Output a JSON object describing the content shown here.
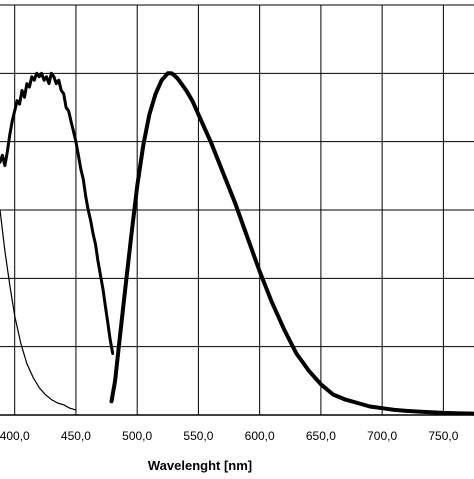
{
  "chart_data": {
    "type": "line",
    "title": "",
    "xlabel": "Wavelenght [nm]",
    "ylabel": "",
    "xlim": [
      388,
      775
    ],
    "ylim": [
      0,
      1.2
    ],
    "grid": true,
    "legend": "none",
    "x_ticks": [
      {
        "value": 400,
        "label": "400,0"
      },
      {
        "value": 450,
        "label": "450,0"
      },
      {
        "value": 500,
        "label": "500,0"
      },
      {
        "value": 550,
        "label": "550,0"
      },
      {
        "value": 600,
        "label": "600,0"
      },
      {
        "value": 650,
        "label": "650,0"
      },
      {
        "value": 700,
        "label": "700,0"
      },
      {
        "value": 750,
        "label": "750,0"
      }
    ],
    "y_gridlines": [
      0,
      0.2,
      0.4,
      0.6,
      0.8,
      1.0,
      1.2
    ],
    "series": [
      {
        "color": "#000000",
        "line_width": 3,
        "x": [
          388,
          390,
          392,
          394,
          396,
          398,
          400,
          402,
          404,
          406,
          408,
          410,
          412,
          414,
          416,
          418,
          420,
          422,
          424,
          426,
          428,
          430,
          432,
          434,
          436,
          438,
          440,
          442,
          444,
          446,
          448,
          450,
          452,
          454,
          456,
          458,
          460,
          462,
          464,
          466,
          468,
          470,
          472,
          474,
          476,
          478,
          480
        ],
        "y": [
          0.74,
          0.76,
          0.73,
          0.77,
          0.82,
          0.86,
          0.89,
          0.92,
          0.91,
          0.95,
          0.93,
          0.97,
          0.96,
          0.99,
          0.98,
          1.0,
          0.99,
          1.0,
          0.98,
          0.99,
          0.97,
          1.0,
          0.99,
          0.97,
          0.98,
          0.95,
          0.94,
          0.9,
          0.89,
          0.86,
          0.83,
          0.8,
          0.76,
          0.72,
          0.69,
          0.64,
          0.6,
          0.57,
          0.53,
          0.5,
          0.45,
          0.41,
          0.37,
          0.32,
          0.27,
          0.22,
          0.18
        ]
      },
      {
        "color": "#000000",
        "line_width": 1.2,
        "x": [
          388,
          392,
          396,
          400,
          405,
          410,
          415,
          420,
          425,
          430,
          435,
          440,
          445,
          450
        ],
        "y": [
          0.6,
          0.48,
          0.38,
          0.29,
          0.21,
          0.15,
          0.11,
          0.08,
          0.06,
          0.045,
          0.035,
          0.03,
          0.02,
          0.015
        ]
      },
      {
        "color": "#000000",
        "line_width": 4,
        "x": [
          479,
          482,
          485,
          490,
          495,
          500,
          505,
          510,
          515,
          520,
          525,
          528,
          530,
          533,
          536,
          540,
          545,
          550,
          555,
          560,
          570,
          580,
          590,
          600,
          610,
          620,
          630,
          640,
          650,
          660,
          670,
          680,
          690,
          700,
          710,
          720,
          730,
          740,
          750,
          760,
          775
        ],
        "y": [
          0.04,
          0.1,
          0.2,
          0.36,
          0.52,
          0.67,
          0.79,
          0.88,
          0.94,
          0.98,
          1.0,
          1.0,
          0.995,
          0.985,
          0.97,
          0.95,
          0.92,
          0.88,
          0.84,
          0.8,
          0.71,
          0.62,
          0.52,
          0.42,
          0.33,
          0.25,
          0.18,
          0.13,
          0.09,
          0.06,
          0.045,
          0.035,
          0.025,
          0.02,
          0.015,
          0.012,
          0.01,
          0.008,
          0.006,
          0.005,
          0.004
        ]
      }
    ]
  }
}
